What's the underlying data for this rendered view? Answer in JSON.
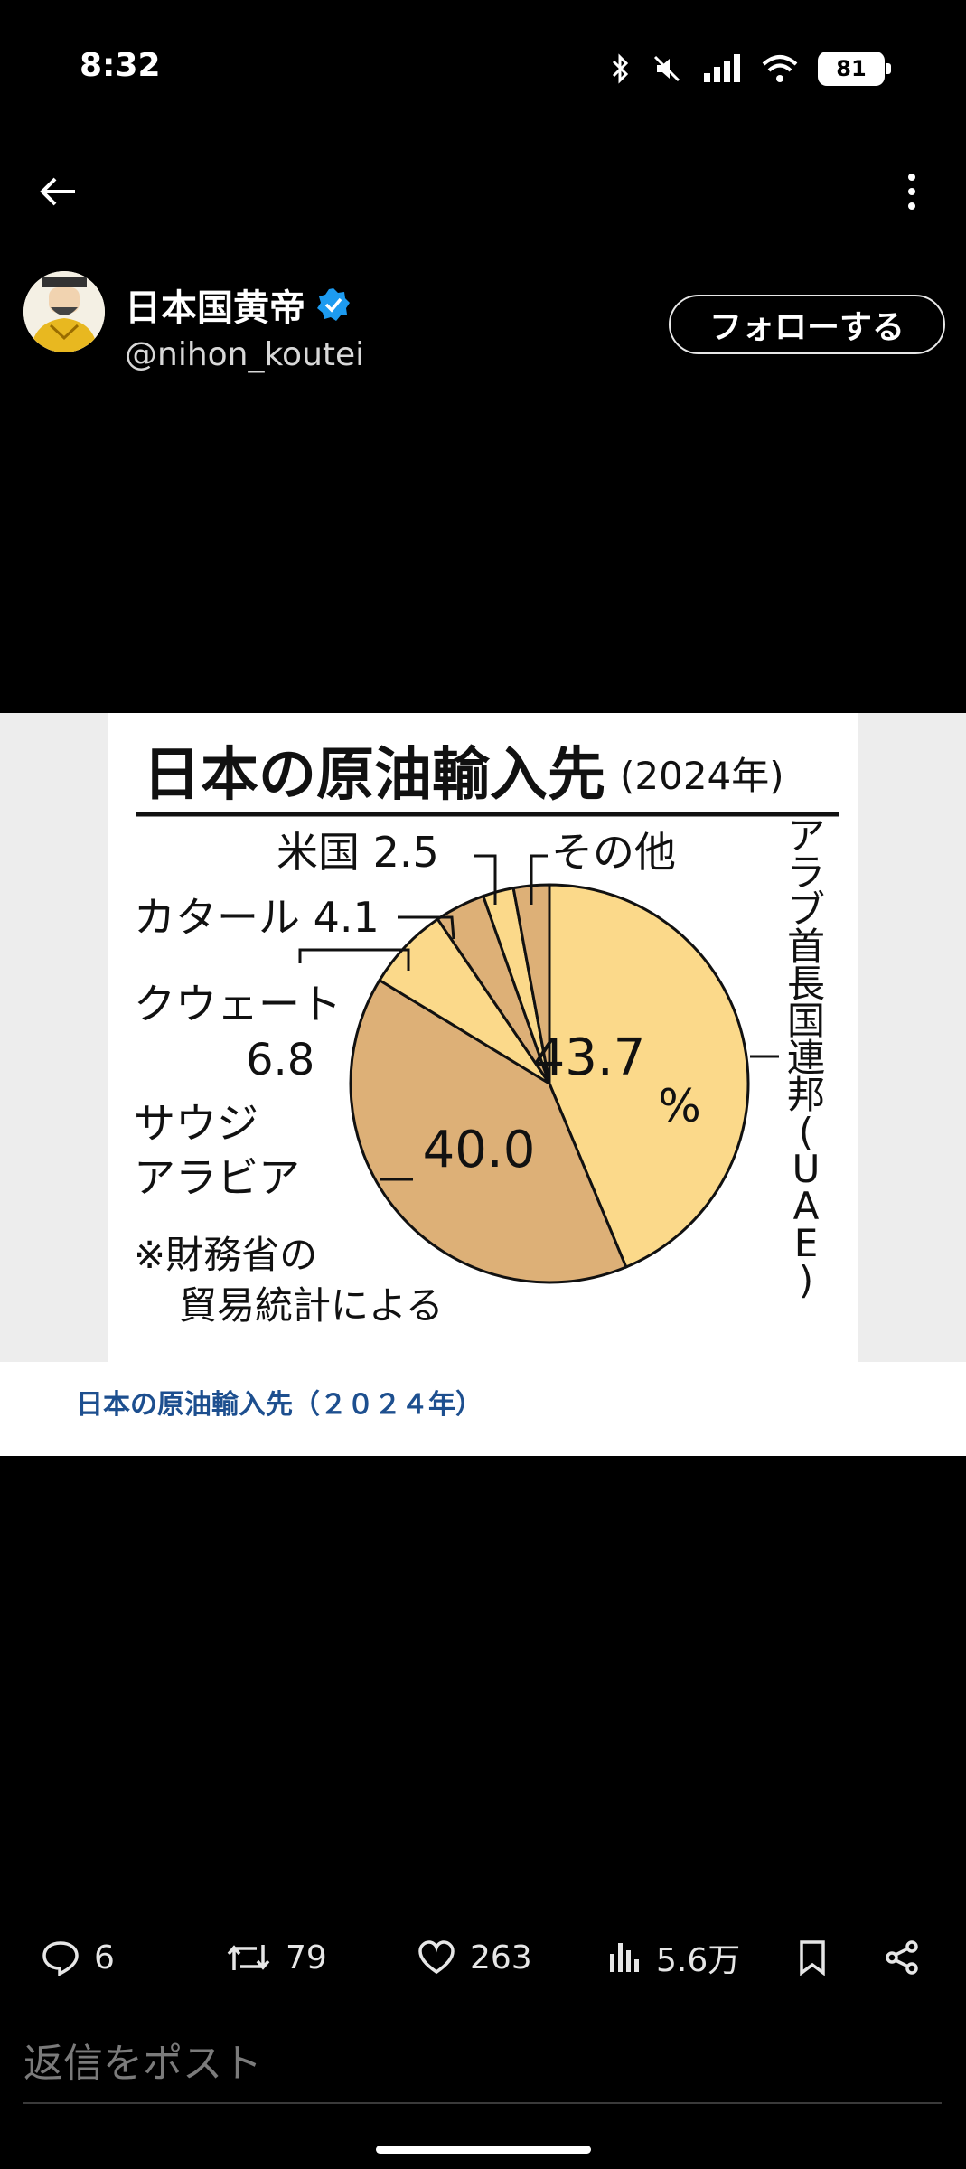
{
  "status_bar": {
    "time": "8:32",
    "battery": "81"
  },
  "author": {
    "name": "日本国黄帝",
    "handle": "@nihon_koutei",
    "follow_label": "フォローする"
  },
  "media": {
    "caption": "日本の原油輸入先（２０２４年）",
    "chart_data": {
      "type": "pie",
      "title": "日本の原油輸入先",
      "subtitle": "(2024年)",
      "slices": [
        {
          "label": "アラブ首長国連邦(UAE)",
          "value": 43.7,
          "value_label": "43.7",
          "unit_label": "%",
          "color": "#fbd98a"
        },
        {
          "label_lines": [
            "サウジ",
            "アラビア"
          ],
          "label": "サウジアラビア",
          "value": 40.0,
          "value_label": "40.0",
          "color": "#ddb077"
        },
        {
          "label_lines": [
            "クウェート",
            "6.8"
          ],
          "label": "クウェート",
          "value": 6.8,
          "value_label": "6.8",
          "color": "#fbd98a"
        },
        {
          "label_lines": [
            "カタール 4.1"
          ],
          "label": "カタール",
          "value": 4.1,
          "value_label": "4.1",
          "color": "#ddb077"
        },
        {
          "label_lines": [
            "米国 2.5"
          ],
          "label": "米国",
          "value": 2.5,
          "value_label": "2.5",
          "color": "#fbd98a"
        },
        {
          "label_lines": [
            "その他"
          ],
          "label": "その他",
          "value": 2.9,
          "color": "#ddb077"
        }
      ],
      "uae_vertical_label": [
        "ア",
        "ラ",
        "ブ",
        "首",
        "長",
        "国",
        "連",
        "邦",
        "(",
        "U",
        "A",
        "E",
        ")"
      ],
      "note_lines": [
        "※財務省の",
        "貿易統計による"
      ]
    }
  },
  "actions": {
    "replies": "6",
    "reposts": "79",
    "likes": "263",
    "views": "5.6万"
  },
  "reply": {
    "placeholder": "返信をポスト"
  },
  "colors": {
    "accent_verified": "#1d9bf0",
    "caption_blue": "#1d4f8f"
  },
  "icons": [
    "back-arrow-icon",
    "more-vertical-icon",
    "verified-badge-icon",
    "reply-icon",
    "repost-icon",
    "like-icon",
    "views-icon",
    "bookmark-icon",
    "share-icon"
  ]
}
